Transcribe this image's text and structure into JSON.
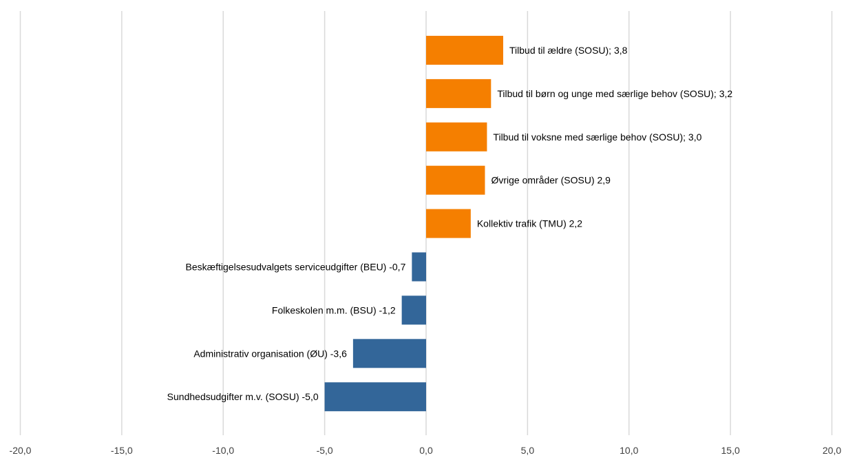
{
  "chart_data": {
    "type": "bar",
    "orientation": "horizontal",
    "title": "",
    "xlabel": "",
    "ylabel": "",
    "xlim": [
      -20,
      20
    ],
    "x_ticks": [
      -20,
      -15,
      -10,
      -5,
      0,
      5,
      10,
      15,
      20
    ],
    "x_tick_labels": [
      "-20,0",
      "-15,0",
      "-10,0",
      "-5,0",
      "0,0",
      "5,0",
      "10,0",
      "15,0",
      "20,0"
    ],
    "grid": "vertical",
    "legend": "none",
    "colors": {
      "positive": "#F57F00",
      "negative": "#336699",
      "grid": "#D9D9D9"
    },
    "bars": [
      {
        "category": "Tilbud til ældre (SOSU)",
        "value": 3.8,
        "label": "Tilbud til ældre (SOSU); 3,8"
      },
      {
        "category": "Tilbud til børn og unge med særlige behov (SOSU)",
        "value": 3.2,
        "label": "Tilbud til børn og unge med særlige behov (SOSU); 3,2"
      },
      {
        "category": "Tilbud til voksne med særlige behov (SOSU)",
        "value": 3.0,
        "label": "Tilbud til voksne med særlige behov (SOSU); 3,0"
      },
      {
        "category": "Øvrige områder (SOSU)",
        "value": 2.9,
        "label": "Øvrige områder (SOSU) 2,9"
      },
      {
        "category": "Kollektiv trafik (TMU)",
        "value": 2.2,
        "label": "Kollektiv trafik (TMU) 2,2"
      },
      {
        "category": "Beskæftigelsesudvalgets serviceudgifter (BEU)",
        "value": -0.7,
        "label": "Beskæftigelsesudvalgets serviceudgifter (BEU) -0,7"
      },
      {
        "category": "Folkeskolen m.m. (BSU)",
        "value": -1.2,
        "label": "Folkeskolen m.m. (BSU) -1,2"
      },
      {
        "category": "Administrativ organisation (ØU)",
        "value": -3.6,
        "label": "Administrativ organisation (ØU) -3,6"
      },
      {
        "category": "Sundhedsudgifter m.v. (SOSU)",
        "value": -5.0,
        "label": "Sundhedsudgifter m.v. (SOSU) -5,0"
      }
    ]
  }
}
